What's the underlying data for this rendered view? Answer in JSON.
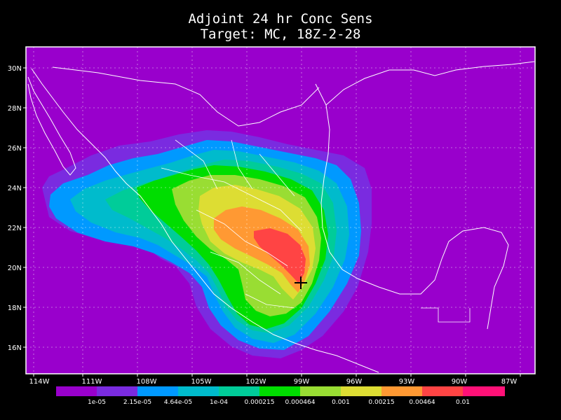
{
  "title_line1": "Adjoint 24 hr Conc Sens",
  "title_line2": "Target: MC, 18Z-2-28",
  "map": {
    "lon_range": [
      -115,
      -86
    ],
    "lat_range": [
      15,
      31
    ],
    "x_ticks": [
      "114W",
      "111W",
      "108W",
      "105W",
      "102W",
      "99W",
      "96W",
      "93W",
      "90W",
      "87W"
    ],
    "y_ticks": [
      "30N",
      "28N",
      "26N",
      "24N",
      "22N",
      "20N",
      "18N",
      "16N"
    ],
    "background_color": "#9900cc",
    "target_marker": {
      "symbol": "plus-icon",
      "lon": -99.1,
      "lat": 19.3
    }
  },
  "colorbar": {
    "colors": [
      "#9900cc",
      "#7a2be0",
      "#0099ff",
      "#00bbcc",
      "#00cc99",
      "#00dd00",
      "#99dd33",
      "#dddd33",
      "#ff9933",
      "#ff4444",
      "#ff1177"
    ],
    "labels": [
      "1e-05",
      "2.15e-05",
      "4.64e-05",
      "1e-04",
      "0.000215",
      "0.000464",
      "0.001",
      "0.00215",
      "0.00464",
      "0.01"
    ]
  }
}
